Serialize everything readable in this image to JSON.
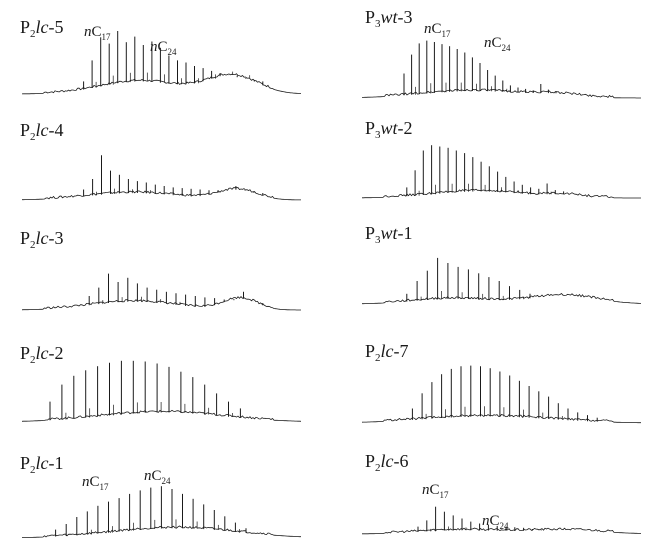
{
  "figure": {
    "type": "chromatogram-grid",
    "trace_color": "#1a1a1a",
    "label_color": "#1a1a1a"
  },
  "chart_data": [
    {
      "type": "line",
      "label": {
        "base": "P",
        "sub": "2",
        "italic": "lc",
        "suffix": "-5"
      },
      "peaks": [
        0.18,
        0.48,
        0.81,
        0.72,
        0.9,
        0.74,
        0.82,
        0.7,
        0.75,
        0.66,
        0.55,
        0.48,
        0.45,
        0.4,
        0.37,
        0.33,
        0.3,
        0.27,
        0.24,
        0.22,
        0.2,
        0.18
      ],
      "hump": {
        "a1": 0.18,
        "c1": 0.42,
        "w1": 0.14,
        "a2": 0.26,
        "c2": 0.75,
        "w2": 0.09
      },
      "annotations": [
        {
          "label": "nC",
          "sub": "17"
        },
        {
          "label": "nC",
          "sub": "24"
        }
      ]
    },
    {
      "type": "line",
      "label": {
        "base": "P",
        "sub": "2",
        "italic": "lc",
        "suffix": "-4"
      },
      "peaks": [
        0.15,
        0.3,
        0.64,
        0.42,
        0.36,
        0.3,
        0.27,
        0.25,
        0.22,
        0.2,
        0.18,
        0.17,
        0.16,
        0.15,
        0.14,
        0.14,
        0.13,
        0.2,
        0.13,
        0.11,
        0.1
      ],
      "hump": {
        "a1": 0.1,
        "c1": 0.4,
        "w1": 0.16,
        "a2": 0.14,
        "c2": 0.77,
        "w2": 0.07
      },
      "annotations": []
    },
    {
      "type": "line",
      "label": {
        "base": "P",
        "sub": "2",
        "italic": "lc",
        "suffix": "-3"
      },
      "peaks": [
        0.2,
        0.32,
        0.52,
        0.4,
        0.46,
        0.38,
        0.32,
        0.29,
        0.26,
        0.24,
        0.22,
        0.2,
        0.18,
        0.17,
        0.15,
        0.14,
        0.26,
        0.12,
        0.1
      ],
      "hump": {
        "a1": 0.12,
        "c1": 0.4,
        "w1": 0.15,
        "a2": 0.16,
        "c2": 0.78,
        "w2": 0.06
      },
      "annotations": []
    },
    {
      "type": "line",
      "label": {
        "base": "P",
        "sub": "2",
        "italic": "lc",
        "suffix": "-2"
      },
      "peaks": [
        0.3,
        0.55,
        0.68,
        0.76,
        0.82,
        0.87,
        0.9,
        0.9,
        0.89,
        0.86,
        0.81,
        0.74,
        0.66,
        0.55,
        0.42,
        0.3,
        0.2
      ],
      "hump": {
        "a1": 0.14,
        "c1": 0.5,
        "w1": 0.22,
        "a2": 0.0,
        "c2": 0.8,
        "w2": 0.05
      },
      "annotations": []
    },
    {
      "type": "line",
      "label": {
        "base": "P",
        "sub": "2",
        "italic": "lc",
        "suffix": "-1"
      },
      "peaks": [
        0.12,
        0.2,
        0.3,
        0.38,
        0.46,
        0.52,
        0.57,
        0.63,
        0.68,
        0.72,
        0.74,
        0.7,
        0.63,
        0.56,
        0.48,
        0.4,
        0.31,
        0.22,
        0.14
      ],
      "hump": {
        "a1": 0.14,
        "c1": 0.55,
        "w1": 0.22,
        "a2": 0.0,
        "c2": 0.8,
        "w2": 0.05
      },
      "annotations": [
        {
          "label": "nC",
          "sub": "17"
        },
        {
          "label": "nC",
          "sub": "24"
        }
      ]
    },
    {
      "type": "line",
      "label": {
        "base": "P",
        "sub": "3",
        "italic": "wt",
        "suffix": "-3"
      },
      "peaks": [
        0.35,
        0.62,
        0.78,
        0.82,
        0.8,
        0.77,
        0.74,
        0.7,
        0.65,
        0.58,
        0.5,
        0.4,
        0.32,
        0.25,
        0.18,
        0.15,
        0.13,
        0.11,
        0.2,
        0.12,
        0.09,
        0.07
      ],
      "hump": {
        "a1": 0.1,
        "c1": 0.4,
        "w1": 0.18,
        "a2": 0.04,
        "c2": 0.7,
        "w2": 0.08
      },
      "annotations": [
        {
          "label": "nC",
          "sub": "17"
        },
        {
          "label": "nC",
          "sub": "24"
        }
      ]
    },
    {
      "type": "line",
      "label": {
        "base": "P",
        "sub": "3",
        "italic": "wt",
        "suffix": "-2"
      },
      "peaks": [
        0.16,
        0.42,
        0.72,
        0.8,
        0.78,
        0.76,
        0.72,
        0.68,
        0.62,
        0.55,
        0.48,
        0.4,
        0.32,
        0.25,
        0.2,
        0.16,
        0.14,
        0.22,
        0.12,
        0.1
      ],
      "hump": {
        "a1": 0.1,
        "c1": 0.42,
        "w1": 0.16,
        "a2": 0.04,
        "c2": 0.72,
        "w2": 0.06
      },
      "annotations": []
    },
    {
      "type": "line",
      "label": {
        "base": "P",
        "sub": "3",
        "italic": "wt",
        "suffix": "-1"
      },
      "peaks": [
        0.16,
        0.36,
        0.52,
        0.72,
        0.64,
        0.58,
        0.54,
        0.48,
        0.42,
        0.36,
        0.28,
        0.22,
        0.16
      ],
      "hump": {
        "a1": 0.08,
        "c1": 0.33,
        "w1": 0.14,
        "a2": 0.13,
        "c2": 0.72,
        "w2": 0.12
      },
      "annotations": []
    },
    {
      "type": "line",
      "label": {
        "base": "P",
        "sub": "2",
        "italic": "lc",
        "suffix": "-7"
      },
      "peaks": [
        0.22,
        0.45,
        0.62,
        0.74,
        0.82,
        0.86,
        0.87,
        0.86,
        0.83,
        0.78,
        0.72,
        0.64,
        0.56,
        0.48,
        0.4,
        0.3,
        0.22,
        0.16,
        0.12,
        0.08
      ],
      "hump": {
        "a1": 0.1,
        "c1": 0.45,
        "w1": 0.22,
        "a2": 0.0,
        "c2": 0.8,
        "w2": 0.05
      },
      "annotations": []
    },
    {
      "type": "line",
      "label": {
        "base": "P",
        "sub": "2",
        "italic": "lc",
        "suffix": "-6"
      },
      "peaks": [
        0.12,
        0.22,
        0.44,
        0.36,
        0.3,
        0.25,
        0.2,
        0.17,
        0.15,
        0.13,
        0.12,
        0.11,
        0.1,
        0.08,
        0.07
      ],
      "hump": {
        "a1": 0.06,
        "c1": 0.35,
        "w1": 0.14,
        "a2": 0.06,
        "c2": 0.72,
        "w2": 0.14
      },
      "annotations": [
        {
          "label": "nC",
          "sub": "17"
        },
        {
          "label": "nC",
          "sub": "24"
        }
      ]
    }
  ]
}
